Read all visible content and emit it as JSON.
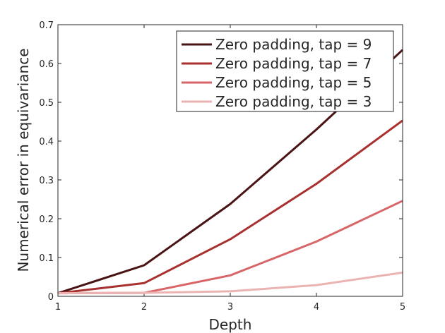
{
  "chart_data": {
    "type": "line",
    "xlabel": "Depth",
    "ylabel": "Numerical error in equivariance",
    "x": [
      1,
      2,
      3,
      4,
      5
    ],
    "xlim": [
      1,
      5
    ],
    "ylim": [
      0,
      0.7
    ],
    "xticks": [
      "1",
      "2",
      "3",
      "4",
      "5"
    ],
    "yticks": [
      "0",
      "0.1",
      "0.2",
      "0.3",
      "0.4",
      "0.5",
      "0.6",
      "0.7"
    ],
    "grid": false,
    "legend_position": "top-right",
    "series": [
      {
        "name": "Zero padding, tap = 9",
        "color": "#4a1414",
        "values": [
          0.008,
          0.08,
          0.238,
          0.43,
          0.635
        ]
      },
      {
        "name": "Zero padding, tap = 7",
        "color": "#a8302f",
        "values": [
          0.008,
          0.034,
          0.147,
          0.29,
          0.453
        ]
      },
      {
        "name": "Zero padding, tap = 5",
        "color": "#d86668",
        "values": [
          0.008,
          0.009,
          0.054,
          0.141,
          0.246
        ]
      },
      {
        "name": "Zero padding, tap = 3",
        "color": "#ebb3b1",
        "values": [
          0.008,
          0.009,
          0.013,
          0.029,
          0.061
        ]
      }
    ]
  }
}
